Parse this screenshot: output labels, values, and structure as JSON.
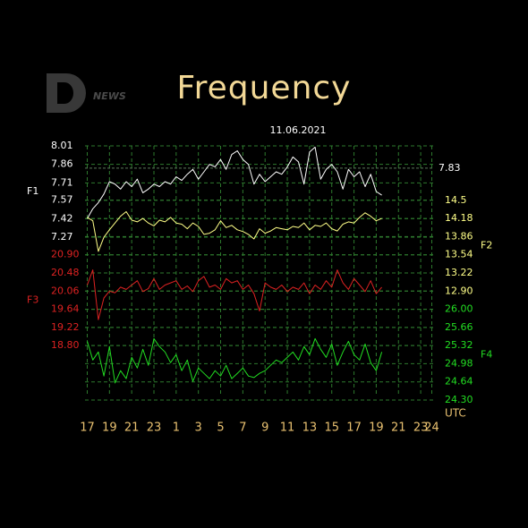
{
  "chart_data": {
    "type": "line",
    "title": "Frequency",
    "subtitle": "11.06.2021",
    "x_label": "UTC",
    "logo": "NEWS",
    "x": [
      17,
      17.5,
      18,
      18.5,
      19,
      19.5,
      20,
      20.5,
      21,
      21.5,
      22,
      22.5,
      23,
      23.5,
      24,
      24.5,
      25,
      25.5,
      26,
      26.5,
      27,
      27.5,
      28,
      28.5,
      29,
      29.5,
      30,
      30.5,
      31,
      31.5,
      32,
      32.5,
      33,
      33.5,
      34,
      34.5,
      35,
      35.5,
      36,
      36.5,
      37,
      37.5,
      38,
      38.5,
      39,
      39.5,
      40,
      40.5,
      41,
      41.5,
      42,
      42.5,
      43,
      43.5
    ],
    "xlim": [
      16.8,
      48.2
    ],
    "xticks": [
      17,
      19,
      21,
      23,
      {
        "value": 25,
        "label": "1"
      },
      {
        "value": 27,
        "label": "3"
      },
      {
        "value": 29,
        "label": "5"
      },
      {
        "value": 31,
        "label": "7"
      },
      {
        "value": 33,
        "label": "9"
      },
      {
        "value": 35,
        "label": "11"
      },
      {
        "value": 37,
        "label": "13"
      },
      {
        "value": 39,
        "label": "15"
      },
      {
        "value": 41,
        "label": "17"
      },
      {
        "value": 43,
        "label": "19"
      },
      {
        "value": 45,
        "label": "21"
      },
      {
        "value": 47,
        "label": "23"
      },
      {
        "value": 48,
        "label": "24"
      }
    ],
    "grid": true,
    "series": [
      {
        "name": "F1",
        "color": "#ffffff",
        "axis": "left",
        "ylim": [
          5.95,
          8.01
        ],
        "yticks": [
          8.01,
          7.86,
          7.71,
          7.57,
          7.42,
          7.27
        ],
        "reference_line": 7.83,
        "values": [
          7.42,
          7.5,
          7.55,
          7.62,
          7.72,
          7.7,
          7.66,
          7.72,
          7.68,
          7.74,
          7.63,
          7.66,
          7.7,
          7.68,
          7.72,
          7.7,
          7.76,
          7.73,
          7.78,
          7.82,
          7.74,
          7.8,
          7.86,
          7.84,
          7.9,
          7.82,
          7.94,
          7.97,
          7.9,
          7.86,
          7.7,
          7.78,
          7.72,
          7.76,
          7.8,
          7.78,
          7.84,
          7.92,
          7.88,
          7.7,
          7.96,
          8.0,
          7.74,
          7.82,
          7.86,
          7.8,
          7.66,
          7.82,
          7.76,
          7.8,
          7.68,
          7.78,
          7.64,
          7.61
        ]
      },
      {
        "name": "F2",
        "color": "#ffff88",
        "axis": "right",
        "ylim": [
          10.98,
          15.46
        ],
        "yticks": [
          14.5,
          14.18,
          13.86,
          13.54,
          13.22,
          {
            "value": 12.9,
            "label": "12.90"
          }
        ],
        "values": [
          14.2,
          14.14,
          13.6,
          13.85,
          13.98,
          14.1,
          14.22,
          14.3,
          14.15,
          14.12,
          14.18,
          14.1,
          14.05,
          14.15,
          14.12,
          14.2,
          14.1,
          14.08,
          14.0,
          14.1,
          14.04,
          13.9,
          13.92,
          13.98,
          14.14,
          14.02,
          14.06,
          13.98,
          13.95,
          13.9,
          13.82,
          14.0,
          13.92,
          13.96,
          14.02,
          14.0,
          13.98,
          14.04,
          14.02,
          14.1,
          13.98,
          14.06,
          14.04,
          14.1,
          14.0,
          13.96,
          14.08,
          14.12,
          14.1,
          14.2,
          14.28,
          14.22,
          14.14,
          14.18
        ]
      },
      {
        "name": "F3",
        "color": "#dd2222",
        "axis": "left",
        "ylim": [
          17.54,
          23.42
        ],
        "yticks": [
          {
            "value": 20.9,
            "label": "20.90"
          },
          20.48,
          20.06,
          19.64,
          19.22,
          {
            "value": 18.8,
            "label": "18.80"
          }
        ],
        "values": [
          20.2,
          20.55,
          19.4,
          19.9,
          20.06,
          20.02,
          20.15,
          20.1,
          20.2,
          20.3,
          20.05,
          20.12,
          20.35,
          20.1,
          20.2,
          20.25,
          20.3,
          20.1,
          20.18,
          20.05,
          20.3,
          20.4,
          20.15,
          20.2,
          20.1,
          20.35,
          20.25,
          20.3,
          20.1,
          20.2,
          20.0,
          19.6,
          20.25,
          20.15,
          20.1,
          20.2,
          20.05,
          20.15,
          20.1,
          20.25,
          20.0,
          20.2,
          20.1,
          20.3,
          20.15,
          20.55,
          20.25,
          20.1,
          20.35,
          20.2,
          20.05,
          20.3,
          20.0,
          20.15
        ]
      },
      {
        "name": "F4",
        "color": "#22dd22",
        "axis": "right",
        "ylim": [
          24.3,
          29.06
        ],
        "yticks": [
          {
            "value": 26,
            "label": "26.00"
          },
          25.66,
          25.32,
          24.98,
          24.64,
          {
            "value": 24.3,
            "label": "24.30"
          }
        ],
        "values": [
          25.4,
          25.05,
          25.2,
          24.75,
          25.3,
          24.62,
          24.85,
          24.7,
          25.1,
          24.9,
          25.25,
          24.95,
          25.45,
          25.3,
          25.2,
          25.0,
          25.15,
          24.85,
          25.05,
          24.65,
          24.9,
          24.8,
          24.7,
          24.85,
          24.75,
          24.95,
          24.7,
          24.8,
          24.9,
          24.75,
          24.72,
          24.8,
          24.85,
          24.95,
          25.05,
          25.0,
          25.1,
          25.2,
          25.05,
          25.3,
          25.15,
          25.45,
          25.25,
          25.1,
          25.35,
          24.95,
          25.2,
          25.4,
          25.15,
          25.05,
          25.35,
          25.0,
          24.85,
          25.2
        ]
      }
    ]
  }
}
